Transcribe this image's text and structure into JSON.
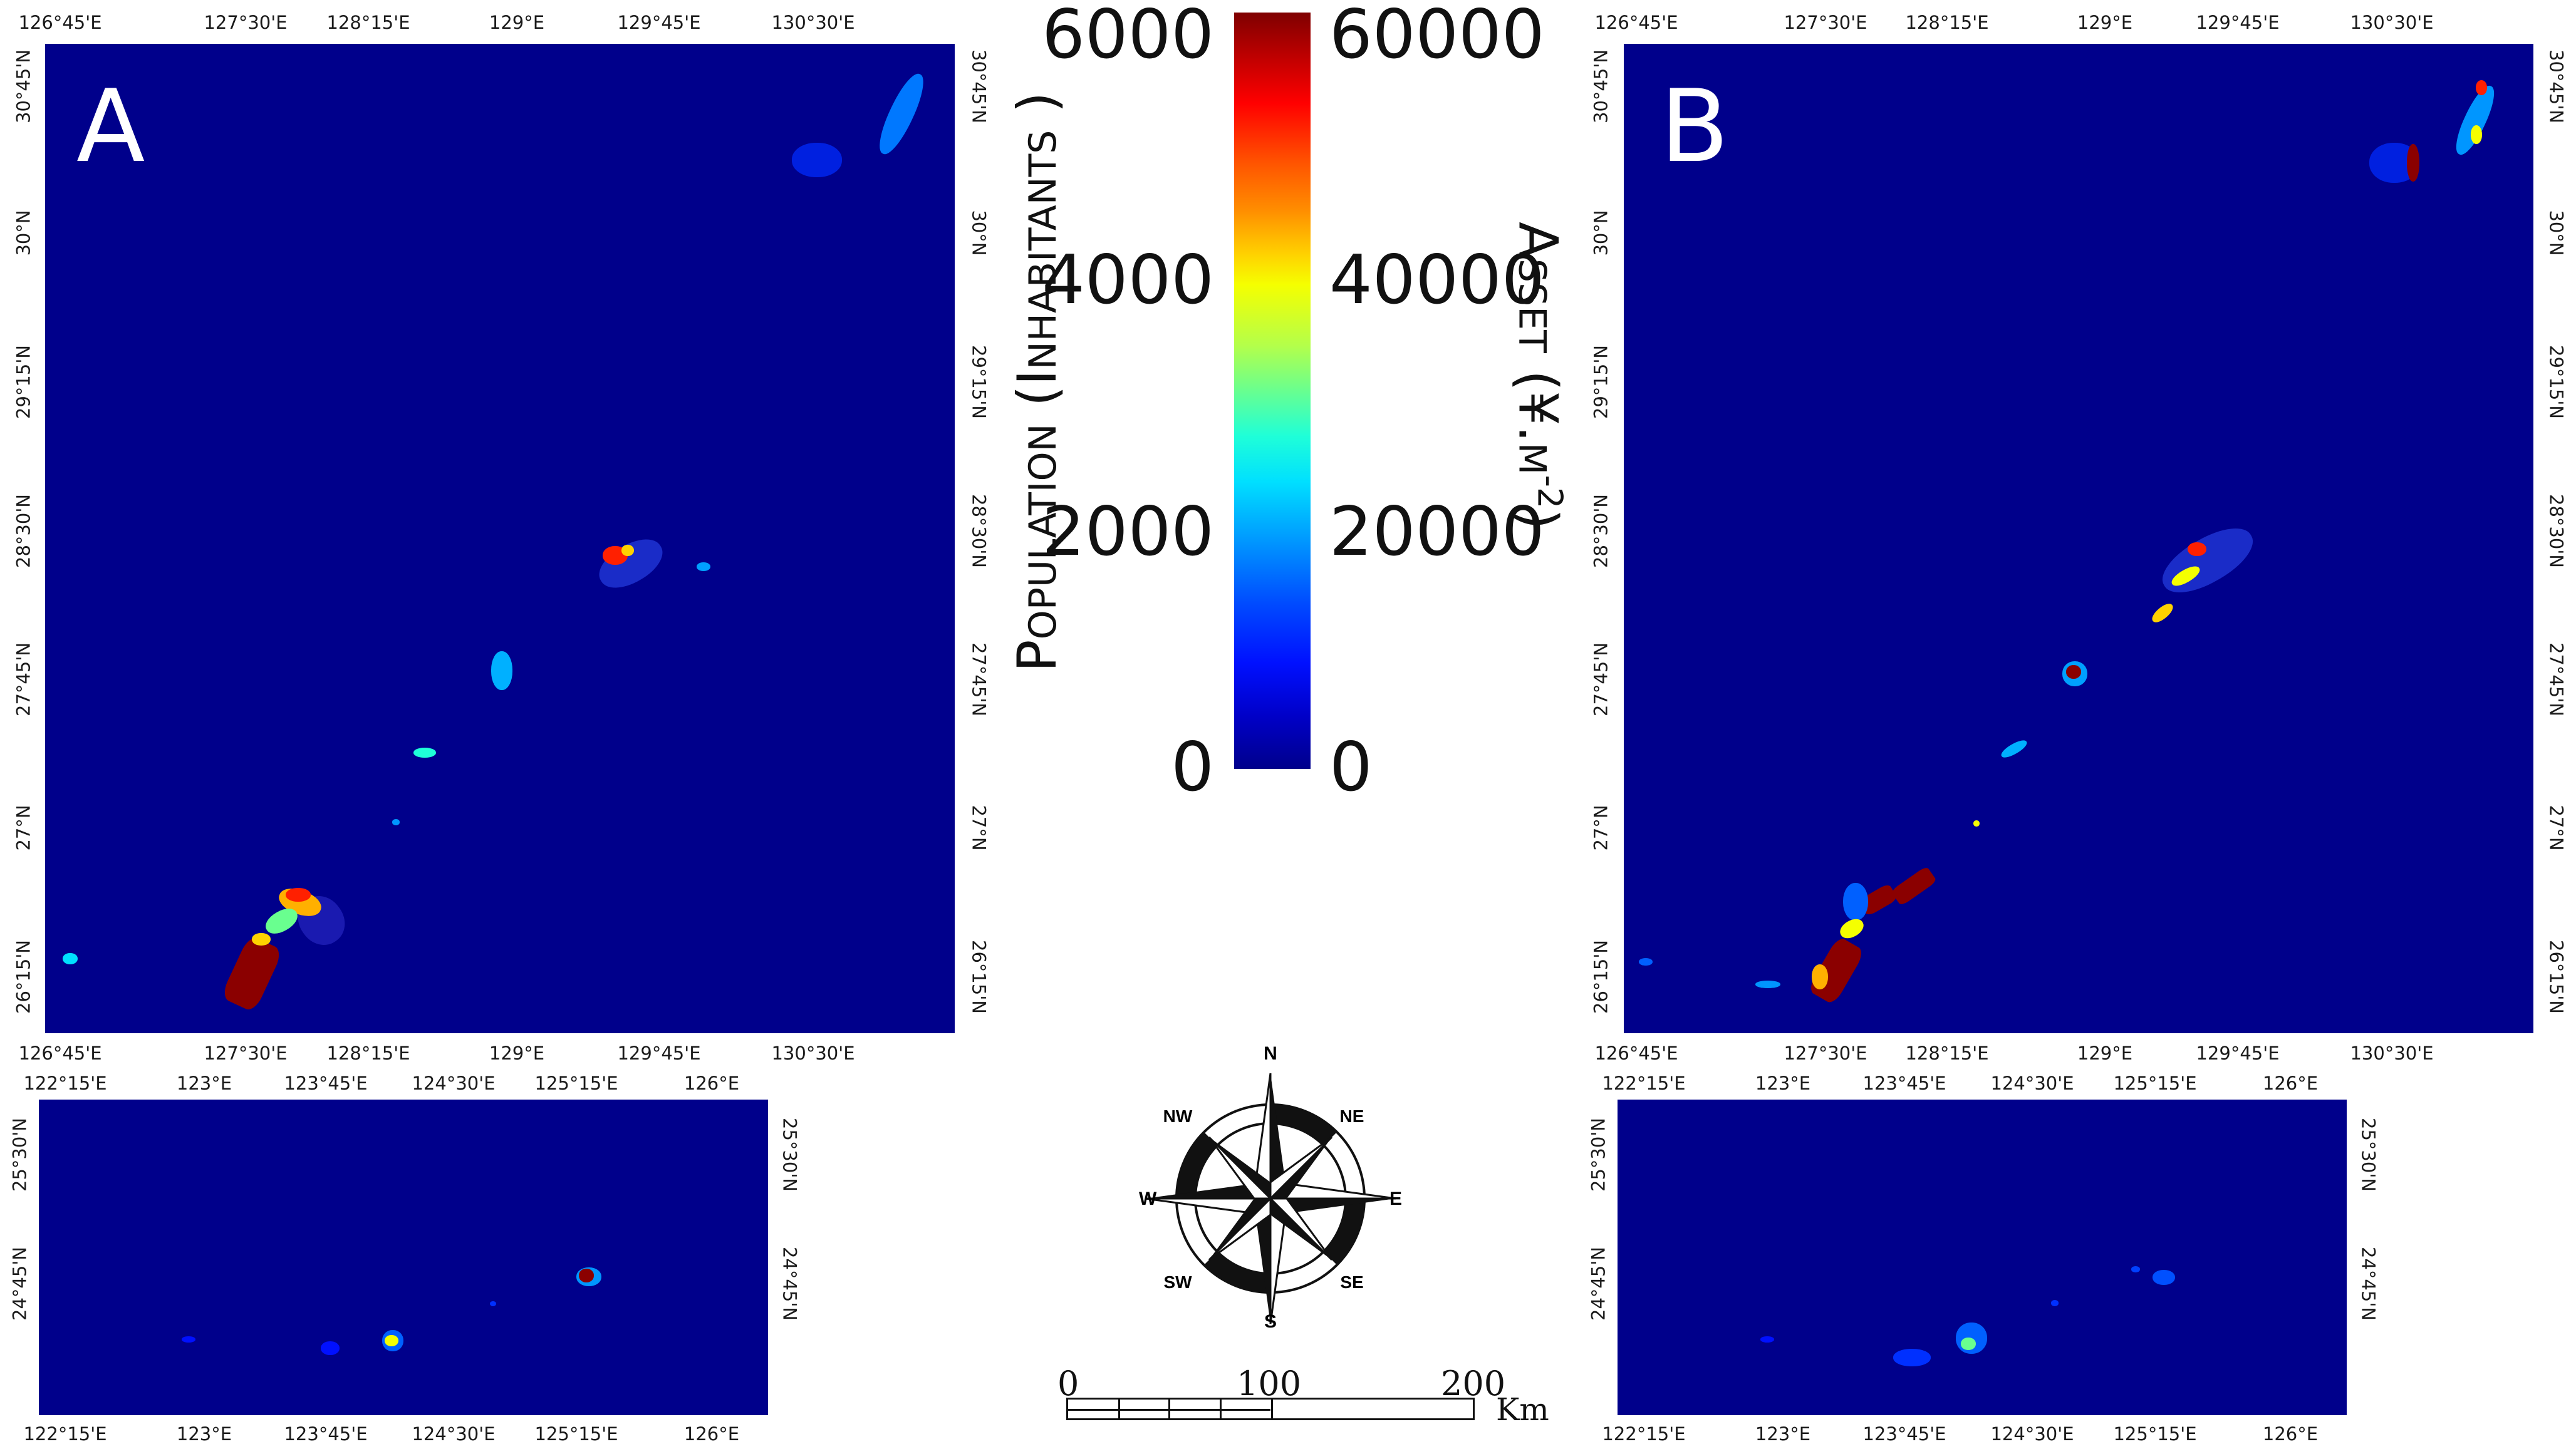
{
  "panels": {
    "a": {
      "label": "A"
    },
    "b": {
      "label": "B"
    }
  },
  "ticks": {
    "lon_main": [
      "126°45'E",
      "127°30'E",
      "128°15'E",
      "129°E",
      "129°45'E",
      "130°30'E"
    ],
    "lat_main": [
      "30°45'N",
      "30°N",
      "29°15'N",
      "28°30'N",
      "27°45'N",
      "27°N",
      "26°15'N"
    ],
    "lon_inset": [
      "122°15'E",
      "123°E",
      "123°45'E",
      "124°30'E",
      "125°15'E",
      "126°E"
    ],
    "lat_inset": [
      "25°30'N",
      "24°45'N"
    ]
  },
  "colorbar": {
    "left_labels": [
      "6000",
      "4000",
      "2000",
      "0"
    ],
    "right_labels": [
      "60000",
      "40000",
      "20000",
      "0"
    ],
    "left_title": "Population (Inhabitants )",
    "right_title": "Asset (¥.m",
    "right_title_sup": "-2",
    "right_title_end": ")",
    "stops": [
      "#7f0000",
      "#ff0000",
      "#ff8c00",
      "#f5ff00",
      "#69ff8f",
      "#1fffd8",
      "#0096ff",
      "#0010ff",
      "#00008b"
    ]
  },
  "compass": {
    "N": "N",
    "NE": "NE",
    "E": "E",
    "SE": "SE",
    "S": "S",
    "SW": "SW",
    "W": "W",
    "NW": "NW"
  },
  "scalebar": {
    "labels": [
      "0",
      "100",
      "200"
    ],
    "unit": "Km"
  },
  "colors": {
    "map_background": "#00008b",
    "low": "#00008b",
    "high": "#7f0000"
  }
}
